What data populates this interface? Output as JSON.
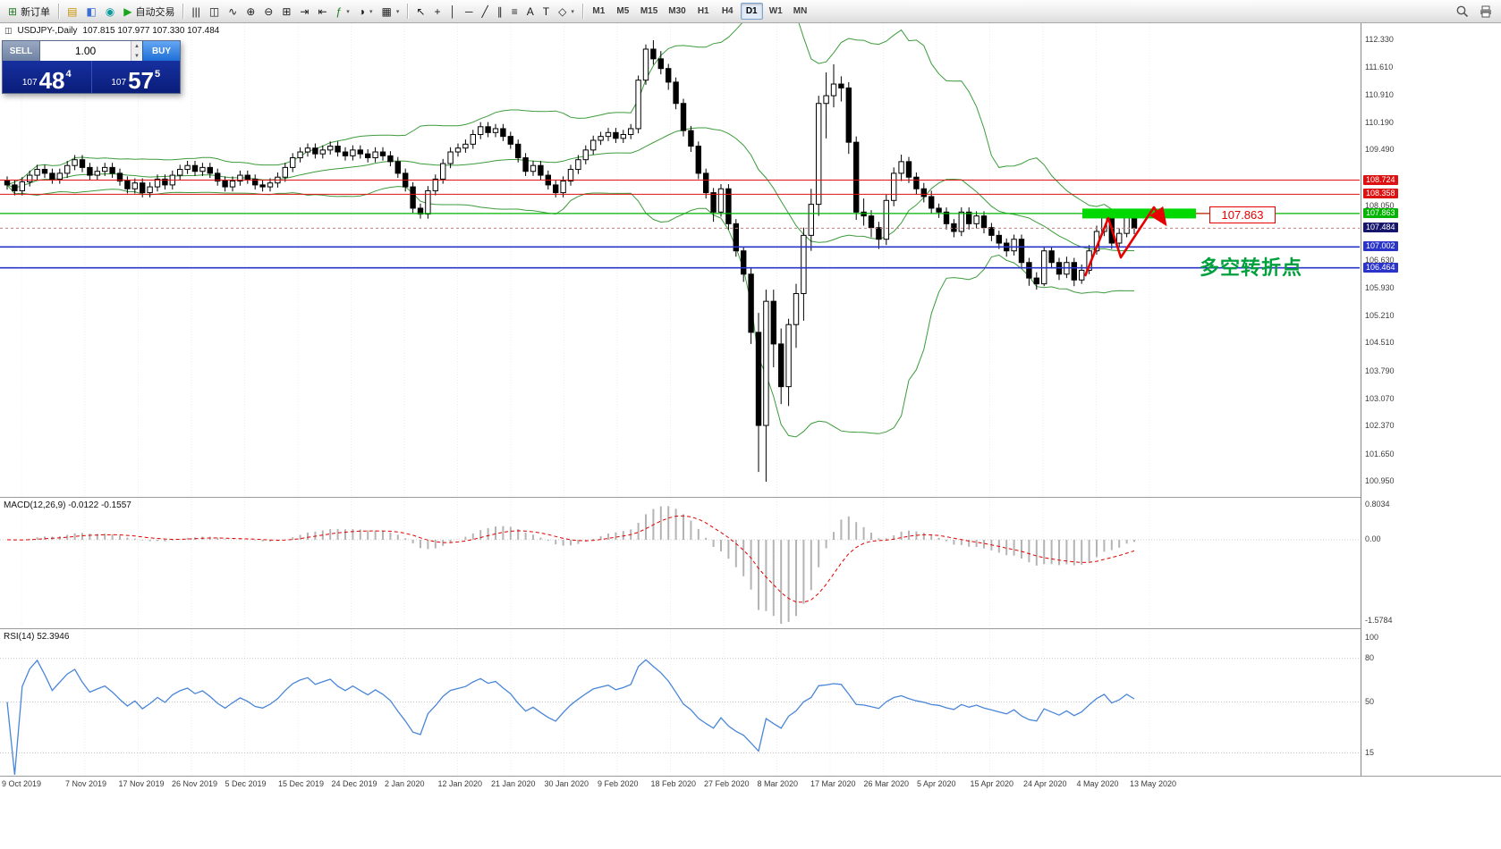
{
  "toolbar": {
    "new_order": {
      "icon": "⊞",
      "label": "新订单"
    },
    "auto_trading": {
      "icon": "▶",
      "label": "自动交易"
    },
    "mid_icons": [
      {
        "name": "new-chart-icon",
        "glyph": "▤",
        "color": "#c79200"
      },
      {
        "name": "profiles-icon",
        "glyph": "◧",
        "color": "#3b6fd4"
      },
      {
        "name": "market-watch-icon",
        "glyph": "◉",
        "color": "#0b9b9b"
      }
    ],
    "chart_icons": [
      {
        "name": "bar-chart-icon",
        "glyph": "|||"
      },
      {
        "name": "candlestick-chart-icon",
        "glyph": "◫"
      },
      {
        "name": "line-chart-icon",
        "glyph": "∿"
      },
      {
        "name": "zoom-in-icon",
        "glyph": "⊕"
      },
      {
        "name": "zoom-out-icon",
        "glyph": "⊖"
      },
      {
        "name": "tile-windows-icon",
        "glyph": "⊞"
      },
      {
        "name": "auto-scroll-icon",
        "glyph": "⇥"
      },
      {
        "name": "chart-shift-icon",
        "glyph": "⇤"
      },
      {
        "name": "indicators-icon",
        "glyph": "ƒ",
        "color": "#1a7d1a",
        "dd": true
      },
      {
        "name": "periods-icon",
        "glyph": "◑",
        "dd": true
      },
      {
        "name": "templates-icon",
        "glyph": "▦",
        "dd": true
      }
    ],
    "draw_icons": [
      {
        "name": "cursor-icon",
        "glyph": "↖"
      },
      {
        "name": "crosshair-icon",
        "glyph": "+"
      },
      {
        "name": "vertical-line-icon",
        "glyph": "│"
      },
      {
        "name": "horizontal-line-icon",
        "glyph": "─"
      },
      {
        "name": "trendline-icon",
        "glyph": "╱"
      },
      {
        "name": "channel-icon",
        "glyph": "∥"
      },
      {
        "name": "fibonacci-icon",
        "glyph": "≡"
      },
      {
        "name": "text-icon",
        "glyph": "A"
      },
      {
        "name": "label-icon",
        "glyph": "T"
      },
      {
        "name": "shapes-icon",
        "glyph": "◇",
        "dd": true
      }
    ],
    "timeframes": [
      {
        "label": "M1"
      },
      {
        "label": "M5"
      },
      {
        "label": "M15"
      },
      {
        "label": "M30"
      },
      {
        "label": "H1"
      },
      {
        "label": "H4"
      },
      {
        "label": "D1",
        "active": true
      },
      {
        "label": "W1"
      },
      {
        "label": "MN"
      }
    ]
  },
  "chart_header": {
    "icon": "◫",
    "title": "USDJPY-,Daily",
    "ohlc": "107.815 107.977 107.330 107.484"
  },
  "trade_panel": {
    "sell_label": "SELL",
    "buy_label": "BUY",
    "volume": "1.00",
    "sell_price": {
      "base": "107",
      "big": "48",
      "sup": "4"
    },
    "buy_price": {
      "base": "107",
      "big": "57",
      "sup": "5"
    }
  },
  "annotations": {
    "turning_point_text": "多空转折点",
    "price_flag": "107.863"
  },
  "macd_panel": {
    "label": "MACD(12,26,9) -0.0122 -0.1557",
    "scale": [
      {
        "text": "0.8034",
        "pos": "top"
      },
      {
        "text": "0.00",
        "pos": "zero"
      },
      {
        "text": "-1.5784",
        "pos": "bottom"
      }
    ]
  },
  "rsi_panel": {
    "label": "RSI(14) 52.3946",
    "scale": [
      {
        "text": "100",
        "value": 100
      },
      {
        "text": "80",
        "value": 80
      },
      {
        "text": "50",
        "value": 50
      },
      {
        "text": "15",
        "value": 15
      }
    ]
  },
  "price_axis": {
    "labels": [
      {
        "text": "112.330",
        "value": 112.33,
        "type": "normal"
      },
      {
        "text": "111.610",
        "value": 111.61,
        "type": "normal"
      },
      {
        "text": "110.910",
        "value": 110.91,
        "type": "normal"
      },
      {
        "text": "110.190",
        "value": 110.19,
        "type": "normal"
      },
      {
        "text": "109.490",
        "value": 109.49,
        "type": "normal"
      },
      {
        "text": "108.050",
        "value": 108.05,
        "type": "normal"
      },
      {
        "text": "106.630",
        "value": 106.63,
        "type": "normal"
      },
      {
        "text": "105.930",
        "value": 105.93,
        "type": "normal"
      },
      {
        "text": "105.210",
        "value": 105.21,
        "type": "normal"
      },
      {
        "text": "104.510",
        "value": 104.51,
        "type": "normal"
      },
      {
        "text": "103.790",
        "value": 103.79,
        "type": "normal"
      },
      {
        "text": "103.070",
        "value": 103.07,
        "type": "normal"
      },
      {
        "text": "102.370",
        "value": 102.37,
        "type": "normal"
      },
      {
        "text": "101.650",
        "value": 101.65,
        "type": "normal"
      },
      {
        "text": "100.950",
        "value": 100.95,
        "type": "normal"
      },
      {
        "text": "108.724",
        "value": 108.724,
        "type": "red"
      },
      {
        "text": "108.358",
        "value": 108.358,
        "type": "red"
      },
      {
        "text": "107.863",
        "value": 107.863,
        "type": "green"
      },
      {
        "text": "107.484",
        "value": 107.484,
        "type": "bid"
      },
      {
        "text": "107.002",
        "value": 107.002,
        "type": "blue"
      },
      {
        "text": "106.464",
        "value": 106.464,
        "type": "blue"
      }
    ]
  },
  "chart_data": {
    "type": "candlestick",
    "symbol": "USDJPY-",
    "timeframe": "Daily",
    "title": "USDJPY-,Daily",
    "ohlc_display": {
      "open": "107.815",
      "high": "107.977",
      "low": "107.330",
      "close": "107.484"
    },
    "bid": 107.484,
    "y_axis": {
      "min": 100.95,
      "max": 112.33,
      "tick_step": 0.72
    },
    "horizontal_levels": [
      {
        "value": 108.724,
        "color": "#dd1111",
        "w": 1
      },
      {
        "value": 108.358,
        "color": "#dd1111",
        "w": 1
      },
      {
        "value": 107.863,
        "color": "#00b400",
        "w": 1.2,
        "highlight": true
      },
      {
        "value": 107.002,
        "color": "#2a34c8",
        "w": 1.6
      },
      {
        "value": 106.464,
        "color": "#2a34c8",
        "w": 1.6
      }
    ],
    "indicators": [
      {
        "name": "Bollinger Bands",
        "period": 20,
        "deviation": 2,
        "color": "#3c9b3c"
      },
      {
        "name": "MACD",
        "fast": 12,
        "slow": 26,
        "signal": 9,
        "values_display": "-0.0122 -0.1557"
      },
      {
        "name": "RSI",
        "period": 14,
        "value_display": "52.3946"
      }
    ],
    "x_axis_dates": [
      "9 Oct 2019",
      "7 Nov 2019",
      "17 Nov 2019",
      "26 Nov 2019",
      "5 Dec 2019",
      "15 Dec 2019",
      "24 Dec 2019",
      "2 Jan 2020",
      "12 Jan 2020",
      "21 Jan 2020",
      "30 Jan 2020",
      "9 Feb 2020",
      "18 Feb 2020",
      "27 Feb 2020",
      "8 Mar 2020",
      "17 Mar 2020",
      "26 Mar 2020",
      "5 Apr 2020",
      "15 Apr 2020",
      "24 Apr 2020",
      "4 May 2020",
      "13 May 2020"
    ],
    "candles": [
      [
        108.7,
        108.82,
        108.48,
        108.6
      ],
      [
        108.6,
        108.72,
        108.33,
        108.45
      ],
      [
        108.45,
        108.8,
        108.33,
        108.68
      ],
      [
        108.68,
        108.97,
        108.56,
        108.85
      ],
      [
        108.85,
        109.12,
        108.73,
        109.0
      ],
      [
        109.0,
        109.12,
        108.78,
        108.9
      ],
      [
        108.9,
        109.02,
        108.63,
        108.75
      ],
      [
        108.75,
        109.02,
        108.63,
        108.9
      ],
      [
        108.9,
        109.22,
        108.78,
        109.1
      ],
      [
        109.1,
        109.37,
        108.98,
        109.25
      ],
      [
        109.25,
        109.37,
        108.93,
        109.05
      ],
      [
        109.05,
        109.17,
        108.73,
        108.85
      ],
      [
        108.85,
        109.07,
        108.73,
        108.95
      ],
      [
        108.95,
        109.17,
        108.83,
        109.05
      ],
      [
        109.05,
        109.17,
        108.78,
        108.9
      ],
      [
        108.9,
        109.02,
        108.58,
        108.7
      ],
      [
        108.7,
        108.82,
        108.38,
        108.5
      ],
      [
        108.5,
        108.77,
        108.38,
        108.65
      ],
      [
        108.65,
        108.77,
        108.28,
        108.4
      ],
      [
        108.4,
        108.67,
        108.28,
        108.55
      ],
      [
        108.55,
        108.87,
        108.43,
        108.75
      ],
      [
        108.75,
        108.87,
        108.48,
        108.6
      ],
      [
        108.6,
        108.97,
        108.48,
        108.85
      ],
      [
        108.85,
        109.12,
        108.73,
        109.0
      ],
      [
        109.0,
        109.22,
        108.88,
        109.1
      ],
      [
        109.1,
        109.22,
        108.83,
        108.95
      ],
      [
        108.95,
        109.17,
        108.83,
        109.05
      ],
      [
        109.05,
        109.17,
        108.78,
        108.9
      ],
      [
        108.9,
        109.02,
        108.58,
        108.7
      ],
      [
        108.7,
        108.82,
        108.43,
        108.55
      ],
      [
        108.55,
        108.82,
        108.43,
        108.7
      ],
      [
        108.7,
        108.97,
        108.58,
        108.85
      ],
      [
        108.85,
        108.97,
        108.63,
        108.75
      ],
      [
        108.75,
        108.87,
        108.48,
        108.6
      ],
      [
        108.6,
        108.72,
        108.43,
        108.55
      ],
      [
        108.55,
        108.77,
        108.43,
        108.65
      ],
      [
        108.65,
        108.92,
        108.53,
        108.8
      ],
      [
        108.8,
        109.17,
        108.68,
        109.05
      ],
      [
        109.05,
        109.42,
        108.93,
        109.3
      ],
      [
        109.3,
        109.57,
        109.18,
        109.45
      ],
      [
        109.45,
        109.67,
        109.33,
        109.55
      ],
      [
        109.55,
        109.67,
        109.28,
        109.4
      ],
      [
        109.4,
        109.62,
        109.28,
        109.5
      ],
      [
        109.5,
        109.72,
        109.38,
        109.6
      ],
      [
        109.6,
        109.72,
        109.33,
        109.45
      ],
      [
        109.45,
        109.57,
        109.23,
        109.35
      ],
      [
        109.35,
        109.62,
        109.23,
        109.5
      ],
      [
        109.5,
        109.62,
        109.28,
        109.4
      ],
      [
        109.4,
        109.52,
        109.18,
        109.3
      ],
      [
        109.3,
        109.57,
        109.18,
        109.45
      ],
      [
        109.45,
        109.57,
        109.23,
        109.35
      ],
      [
        109.35,
        109.47,
        109.08,
        109.2
      ],
      [
        109.2,
        109.32,
        108.78,
        108.9
      ],
      [
        108.9,
        109.02,
        108.43,
        108.55
      ],
      [
        108.55,
        108.67,
        107.88,
        108.0
      ],
      [
        108.0,
        108.12,
        107.73,
        107.85
      ],
      [
        107.85,
        108.57,
        107.73,
        108.45
      ],
      [
        108.45,
        108.87,
        108.33,
        108.75
      ],
      [
        108.75,
        109.27,
        108.63,
        109.15
      ],
      [
        109.15,
        109.57,
        109.03,
        109.45
      ],
      [
        109.45,
        109.67,
        109.33,
        109.55
      ],
      [
        109.55,
        109.77,
        109.43,
        109.65
      ],
      [
        109.65,
        110.02,
        109.53,
        109.9
      ],
      [
        109.9,
        110.22,
        109.78,
        110.1
      ],
      [
        110.1,
        110.22,
        109.83,
        109.95
      ],
      [
        109.95,
        110.17,
        109.83,
        110.05
      ],
      [
        110.05,
        110.17,
        109.73,
        109.85
      ],
      [
        109.85,
        109.97,
        109.53,
        109.65
      ],
      [
        109.65,
        109.77,
        109.18,
        109.3
      ],
      [
        109.3,
        109.42,
        108.83,
        108.95
      ],
      [
        108.95,
        109.22,
        108.83,
        109.1
      ],
      [
        109.1,
        109.22,
        108.73,
        108.85
      ],
      [
        108.85,
        108.97,
        108.48,
        108.6
      ],
      [
        108.6,
        108.72,
        108.28,
        108.4
      ],
      [
        108.4,
        108.82,
        108.28,
        108.7
      ],
      [
        108.7,
        109.12,
        108.58,
        109.0
      ],
      [
        109.0,
        109.37,
        108.88,
        109.25
      ],
      [
        109.25,
        109.62,
        109.13,
        109.5
      ],
      [
        109.5,
        109.87,
        109.38,
        109.75
      ],
      [
        109.75,
        109.97,
        109.63,
        109.85
      ],
      [
        109.85,
        110.07,
        109.73,
        109.95
      ],
      [
        109.95,
        110.07,
        109.68,
        109.8
      ],
      [
        109.8,
        110.02,
        109.68,
        109.9
      ],
      [
        109.9,
        110.17,
        109.78,
        110.05
      ],
      [
        110.05,
        111.42,
        109.93,
        111.3
      ],
      [
        111.3,
        112.22,
        111.18,
        112.1
      ],
      [
        112.1,
        112.33,
        111.7,
        111.85
      ],
      [
        111.85,
        112.05,
        111.45,
        111.6
      ],
      [
        111.6,
        111.72,
        111.05,
        111.25
      ],
      [
        111.25,
        111.37,
        110.55,
        110.7
      ],
      [
        110.7,
        110.82,
        109.85,
        110.0
      ],
      [
        110.0,
        110.12,
        109.45,
        109.6
      ],
      [
        109.6,
        109.72,
        108.75,
        108.9
      ],
      [
        108.9,
        109.02,
        108.25,
        108.4
      ],
      [
        108.4,
        108.52,
        107.65,
        107.9
      ],
      [
        107.9,
        108.62,
        107.78,
        108.5
      ],
      [
        108.5,
        108.62,
        107.45,
        107.6
      ],
      [
        107.6,
        107.72,
        106.75,
        106.9
      ],
      [
        106.9,
        107.02,
        106.1,
        106.3
      ],
      [
        106.3,
        106.45,
        104.5,
        104.8
      ],
      [
        104.8,
        105.3,
        101.2,
        102.4
      ],
      [
        102.4,
        105.9,
        100.95,
        105.6
      ],
      [
        105.6,
        105.9,
        103.9,
        104.5
      ],
      [
        104.5,
        104.9,
        102.95,
        103.4
      ],
      [
        103.4,
        105.15,
        102.9,
        105.0
      ],
      [
        105.0,
        106.05,
        104.4,
        105.8
      ],
      [
        105.8,
        107.5,
        105.1,
        107.3
      ],
      [
        107.3,
        108.5,
        106.9,
        108.1
      ],
      [
        108.1,
        110.9,
        107.8,
        110.7
      ],
      [
        110.7,
        111.5,
        109.8,
        110.9
      ],
      [
        110.9,
        111.71,
        110.6,
        111.2
      ],
      [
        111.2,
        111.4,
        110.75,
        111.1
      ],
      [
        111.1,
        111.25,
        109.4,
        109.7
      ],
      [
        109.7,
        109.85,
        107.7,
        107.9
      ],
      [
        107.9,
        108.25,
        107.55,
        107.8
      ],
      [
        107.8,
        107.95,
        107.25,
        107.5
      ],
      [
        107.5,
        107.65,
        106.95,
        107.2
      ],
      [
        107.2,
        108.35,
        107.05,
        108.2
      ],
      [
        108.2,
        109.05,
        108.05,
        108.9
      ],
      [
        108.9,
        109.38,
        108.7,
        109.2
      ],
      [
        109.2,
        109.32,
        108.65,
        108.8
      ],
      [
        108.8,
        108.92,
        108.35,
        108.5
      ],
      [
        108.5,
        108.65,
        108.15,
        108.3
      ],
      [
        108.3,
        108.45,
        107.85,
        108.0
      ],
      [
        108.0,
        108.12,
        107.75,
        107.9
      ],
      [
        107.9,
        108.02,
        107.45,
        107.6
      ],
      [
        107.6,
        107.72,
        107.25,
        107.4
      ],
      [
        107.4,
        108.02,
        107.28,
        107.9
      ],
      [
        107.9,
        108.02,
        107.45,
        107.6
      ],
      [
        107.6,
        107.92,
        107.48,
        107.8
      ],
      [
        107.8,
        107.92,
        107.35,
        107.5
      ],
      [
        107.5,
        107.62,
        107.15,
        107.3
      ],
      [
        107.3,
        107.42,
        106.95,
        107.1
      ],
      [
        107.1,
        107.22,
        106.75,
        106.9
      ],
      [
        106.9,
        107.32,
        106.78,
        107.2
      ],
      [
        107.2,
        107.32,
        106.45,
        106.6
      ],
      [
        106.6,
        106.72,
        106.0,
        106.2
      ],
      [
        106.2,
        106.35,
        105.9,
        106.05
      ],
      [
        106.05,
        107.0,
        105.99,
        106.9
      ],
      [
        106.9,
        107.02,
        106.45,
        106.6
      ],
      [
        106.6,
        106.72,
        106.15,
        106.3
      ],
      [
        106.3,
        106.75,
        106.2,
        106.6
      ],
      [
        106.6,
        106.72,
        105.99,
        106.15
      ],
      [
        106.15,
        106.55,
        106.05,
        106.4
      ],
      [
        106.4,
        107.05,
        106.3,
        106.9
      ],
      [
        106.9,
        107.55,
        106.8,
        107.4
      ],
      [
        107.4,
        107.88,
        107.28,
        107.75
      ],
      [
        107.75,
        107.85,
        106.95,
        107.1
      ],
      [
        107.1,
        107.48,
        106.98,
        107.35
      ],
      [
        107.35,
        107.9,
        107.25,
        107.82
      ],
      [
        107.815,
        107.977,
        107.33,
        107.484
      ]
    ]
  }
}
